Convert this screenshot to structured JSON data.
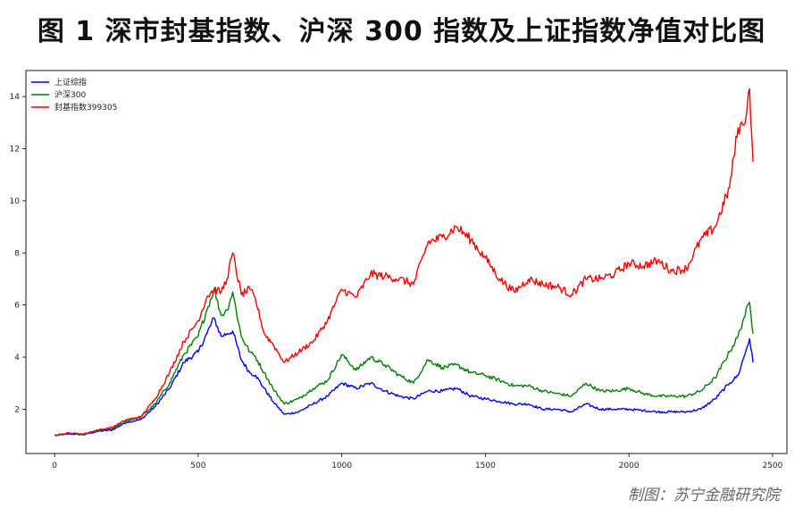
{
  "title": "图 1 深市封基指数、沪深 300 指数及上证指数净值对比图",
  "credit": "制图：苏宁金融研究院",
  "chart_data": {
    "type": "line",
    "xlim": [
      -100,
      2550
    ],
    "ylim": [
      0.3,
      15.0
    ],
    "xticks": [
      0,
      500,
      1000,
      1500,
      2000,
      2500
    ],
    "yticks": [
      2,
      4,
      6,
      8,
      10,
      12,
      14
    ],
    "grid": false,
    "legend_position": "top-left",
    "series": [
      {
        "name": "上证综指",
        "color": "#0000ff",
        "points": [
          [
            0,
            1.0
          ],
          [
            50,
            1.05
          ],
          [
            100,
            1.02
          ],
          [
            150,
            1.15
          ],
          [
            200,
            1.2
          ],
          [
            250,
            1.5
          ],
          [
            300,
            1.6
          ],
          [
            350,
            2.1
          ],
          [
            400,
            2.8
          ],
          [
            450,
            3.8
          ],
          [
            500,
            4.2
          ],
          [
            530,
            4.9
          ],
          [
            555,
            5.5
          ],
          [
            580,
            4.8
          ],
          [
            600,
            4.9
          ],
          [
            620,
            5.0
          ],
          [
            650,
            3.9
          ],
          [
            680,
            3.4
          ],
          [
            700,
            3.3
          ],
          [
            730,
            2.8
          ],
          [
            760,
            2.3
          ],
          [
            800,
            1.8
          ],
          [
            850,
            1.9
          ],
          [
            900,
            2.2
          ],
          [
            950,
            2.5
          ],
          [
            1000,
            3.0
          ],
          [
            1050,
            2.8
          ],
          [
            1100,
            3.0
          ],
          [
            1150,
            2.7
          ],
          [
            1200,
            2.5
          ],
          [
            1250,
            2.4
          ],
          [
            1300,
            2.7
          ],
          [
            1350,
            2.7
          ],
          [
            1400,
            2.8
          ],
          [
            1450,
            2.5
          ],
          [
            1500,
            2.4
          ],
          [
            1550,
            2.3
          ],
          [
            1600,
            2.2
          ],
          [
            1650,
            2.2
          ],
          [
            1700,
            2.0
          ],
          [
            1750,
            2.0
          ],
          [
            1800,
            1.9
          ],
          [
            1850,
            2.2
          ],
          [
            1900,
            2.0
          ],
          [
            1950,
            2.0
          ],
          [
            2000,
            2.0
          ],
          [
            2050,
            1.95
          ],
          [
            2100,
            1.9
          ],
          [
            2150,
            1.9
          ],
          [
            2200,
            1.9
          ],
          [
            2250,
            2.0
          ],
          [
            2300,
            2.4
          ],
          [
            2350,
            3.0
          ],
          [
            2380,
            3.3
          ],
          [
            2400,
            4.0
          ],
          [
            2420,
            4.7
          ],
          [
            2432,
            3.8
          ]
        ]
      },
      {
        "name": "沪深300",
        "color": "#008000",
        "points": [
          [
            0,
            1.0
          ],
          [
            50,
            1.08
          ],
          [
            100,
            1.03
          ],
          [
            150,
            1.18
          ],
          [
            200,
            1.25
          ],
          [
            250,
            1.55
          ],
          [
            300,
            1.7
          ],
          [
            350,
            2.2
          ],
          [
            400,
            3.0
          ],
          [
            450,
            4.1
          ],
          [
            500,
            4.8
          ],
          [
            530,
            5.8
          ],
          [
            555,
            6.6
          ],
          [
            580,
            5.6
          ],
          [
            600,
            5.8
          ],
          [
            620,
            6.5
          ],
          [
            650,
            4.8
          ],
          [
            680,
            4.2
          ],
          [
            700,
            4.0
          ],
          [
            730,
            3.4
          ],
          [
            760,
            2.8
          ],
          [
            800,
            2.2
          ],
          [
            850,
            2.4
          ],
          [
            900,
            2.8
          ],
          [
            950,
            3.1
          ],
          [
            1000,
            4.1
          ],
          [
            1050,
            3.5
          ],
          [
            1100,
            4.0
          ],
          [
            1150,
            3.7
          ],
          [
            1200,
            3.3
          ],
          [
            1250,
            3.0
          ],
          [
            1300,
            3.9
          ],
          [
            1350,
            3.6
          ],
          [
            1400,
            3.7
          ],
          [
            1450,
            3.4
          ],
          [
            1500,
            3.3
          ],
          [
            1550,
            3.1
          ],
          [
            1600,
            2.9
          ],
          [
            1650,
            2.9
          ],
          [
            1700,
            2.7
          ],
          [
            1750,
            2.6
          ],
          [
            1800,
            2.5
          ],
          [
            1850,
            3.0
          ],
          [
            1900,
            2.7
          ],
          [
            1950,
            2.7
          ],
          [
            2000,
            2.8
          ],
          [
            2050,
            2.6
          ],
          [
            2100,
            2.5
          ],
          [
            2150,
            2.5
          ],
          [
            2200,
            2.5
          ],
          [
            2250,
            2.7
          ],
          [
            2300,
            3.2
          ],
          [
            2350,
            4.2
          ],
          [
            2380,
            4.8
          ],
          [
            2400,
            5.5
          ],
          [
            2420,
            6.1
          ],
          [
            2432,
            4.9
          ]
        ]
      },
      {
        "name": "封基指数399305",
        "color": "#ff0000",
        "points": [
          [
            0,
            1.0
          ],
          [
            50,
            1.08
          ],
          [
            100,
            1.05
          ],
          [
            150,
            1.2
          ],
          [
            200,
            1.3
          ],
          [
            250,
            1.6
          ],
          [
            300,
            1.7
          ],
          [
            350,
            2.4
          ],
          [
            400,
            3.4
          ],
          [
            450,
            4.6
          ],
          [
            500,
            5.4
          ],
          [
            530,
            6.3
          ],
          [
            555,
            6.6
          ],
          [
            580,
            6.5
          ],
          [
            600,
            7.0
          ],
          [
            620,
            8.0
          ],
          [
            650,
            6.4
          ],
          [
            680,
            6.6
          ],
          [
            700,
            6.2
          ],
          [
            730,
            4.9
          ],
          [
            760,
            4.5
          ],
          [
            800,
            3.8
          ],
          [
            850,
            4.2
          ],
          [
            900,
            4.6
          ],
          [
            950,
            5.4
          ],
          [
            1000,
            6.6
          ],
          [
            1050,
            6.3
          ],
          [
            1100,
            7.2
          ],
          [
            1150,
            7.1
          ],
          [
            1200,
            7.0
          ],
          [
            1250,
            6.8
          ],
          [
            1300,
            8.4
          ],
          [
            1350,
            8.6
          ],
          [
            1400,
            9.0
          ],
          [
            1450,
            8.5
          ],
          [
            1500,
            7.8
          ],
          [
            1550,
            7.0
          ],
          [
            1600,
            6.5
          ],
          [
            1650,
            7.0
          ],
          [
            1700,
            6.8
          ],
          [
            1750,
            6.7
          ],
          [
            1800,
            6.4
          ],
          [
            1850,
            7.0
          ],
          [
            1900,
            7.0
          ],
          [
            1950,
            7.2
          ],
          [
            2000,
            7.6
          ],
          [
            2050,
            7.5
          ],
          [
            2100,
            7.7
          ],
          [
            2150,
            7.3
          ],
          [
            2200,
            7.4
          ],
          [
            2250,
            8.5
          ],
          [
            2300,
            9.0
          ],
          [
            2350,
            10.5
          ],
          [
            2380,
            12.8
          ],
          [
            2400,
            12.9
          ],
          [
            2420,
            14.3
          ],
          [
            2432,
            11.5
          ]
        ]
      }
    ]
  }
}
